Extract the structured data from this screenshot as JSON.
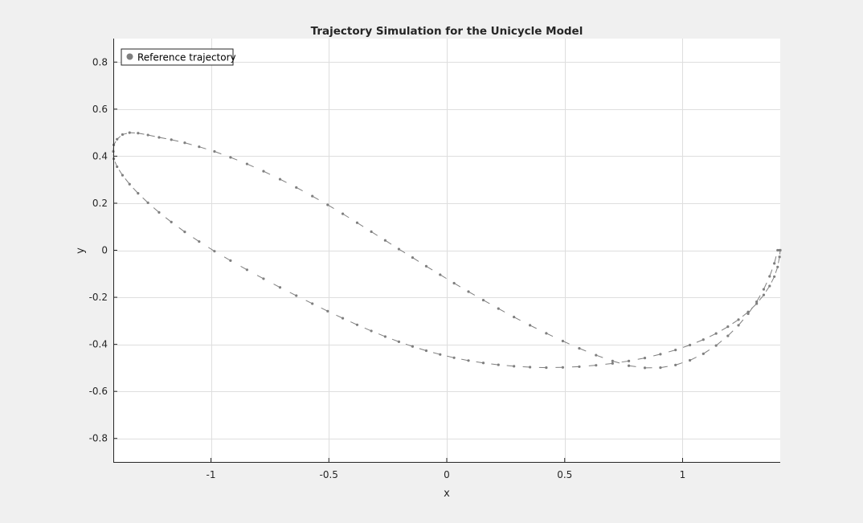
{
  "figure": {
    "background": "#f0f0f0",
    "axes_background": "#ffffff"
  },
  "chart_data": {
    "type": "line",
    "title": "Trajectory Simulation for the Unicycle Model",
    "xlabel": "x",
    "ylabel": "y",
    "xlim": [
      -1.414,
      1.414
    ],
    "ylim": [
      -0.9,
      0.9
    ],
    "grid": true,
    "legend": {
      "location": "top-left"
    },
    "xticks": [
      -1,
      -0.5,
      0,
      0.5,
      1
    ],
    "xtick_labels": [
      "-1",
      "-0.5",
      "0",
      "0.5",
      "1"
    ],
    "yticks": [
      -0.8,
      -0.6,
      -0.4,
      -0.2,
      0,
      0.2,
      0.4,
      0.6,
      0.8
    ],
    "ytick_labels": [
      "-0.8",
      "-0.6",
      "-0.4",
      "-0.2",
      "0",
      "0.2",
      "0.4",
      "0.6",
      "0.8"
    ],
    "series": [
      {
        "name": "Reference trajectory",
        "color": "#7f7f7f",
        "marker": "arrow",
        "x": [
          1.414,
          1.411,
          1.403,
          1.389,
          1.369,
          1.344,
          1.314,
          1.278,
          1.237,
          1.192,
          1.142,
          1.088,
          1.031,
          0.97,
          0.906,
          0.84,
          0.772,
          0.703,
          0.633,
          0.562,
          0.492,
          0.422,
          0.353,
          0.285,
          0.219,
          0.155,
          0.092,
          0.031,
          -0.028,
          -0.087,
          -0.145,
          -0.203,
          -0.261,
          -0.32,
          -0.38,
          -0.441,
          -0.505,
          -0.57,
          -0.638,
          -0.707,
          -0.777,
          -0.847,
          -0.917,
          -0.985,
          -1.05,
          -1.111,
          -1.168,
          -1.22,
          -1.267,
          -1.309,
          -1.345,
          -1.375,
          -1.398,
          -1.412,
          -1.414,
          -1.412,
          -1.398,
          -1.375,
          -1.345,
          -1.309,
          -1.267,
          -1.22,
          -1.168,
          -1.111,
          -1.05,
          -0.985,
          -0.917,
          -0.847,
          -0.777,
          -0.707,
          -0.638,
          -0.57,
          -0.505,
          -0.441,
          -0.38,
          -0.32,
          -0.261,
          -0.203,
          -0.145,
          -0.087,
          -0.028,
          0.031,
          0.092,
          0.155,
          0.219,
          0.285,
          0.353,
          0.422,
          0.492,
          0.562,
          0.633,
          0.703,
          0.772,
          0.84,
          0.906,
          0.97,
          1.031,
          1.088,
          1.142,
          1.192,
          1.237,
          1.278,
          1.314,
          1.344,
          1.369,
          1.389,
          1.403,
          1.411,
          1.414
        ],
        "y": [
          0.0,
          -0.028,
          -0.071,
          -0.112,
          -0.152,
          -0.19,
          -0.227,
          -0.262,
          -0.295,
          -0.325,
          -0.354,
          -0.38,
          -0.403,
          -0.424,
          -0.442,
          -0.458,
          -0.471,
          -0.481,
          -0.489,
          -0.495,
          -0.498,
          -0.499,
          -0.497,
          -0.493,
          -0.487,
          -0.479,
          -0.469,
          -0.457,
          -0.443,
          -0.427,
          -0.409,
          -0.389,
          -0.367,
          -0.343,
          -0.317,
          -0.289,
          -0.259,
          -0.227,
          -0.193,
          -0.158,
          -0.121,
          -0.083,
          -0.044,
          -0.004,
          0.037,
          0.078,
          0.12,
          0.161,
          0.202,
          0.242,
          0.281,
          0.319,
          0.355,
          0.389,
          0.42,
          0.448,
          0.472,
          0.492,
          0.5,
          0.498,
          0.49,
          0.48,
          0.47,
          0.457,
          0.44,
          0.42,
          0.395,
          0.367,
          0.336,
          0.302,
          0.267,
          0.23,
          0.193,
          0.155,
          0.117,
          0.079,
          0.042,
          0.005,
          -0.031,
          -0.068,
          -0.104,
          -0.14,
          -0.176,
          -0.212,
          -0.248,
          -0.284,
          -0.319,
          -0.353,
          -0.386,
          -0.417,
          -0.446,
          -0.471,
          -0.491,
          -0.5,
          -0.499,
          -0.488,
          -0.468,
          -0.44,
          -0.405,
          -0.364,
          -0.319,
          -0.27,
          -0.219,
          -0.166,
          -0.111,
          -0.056,
          0.0,
          0.0,
          0.0
        ]
      }
    ]
  }
}
